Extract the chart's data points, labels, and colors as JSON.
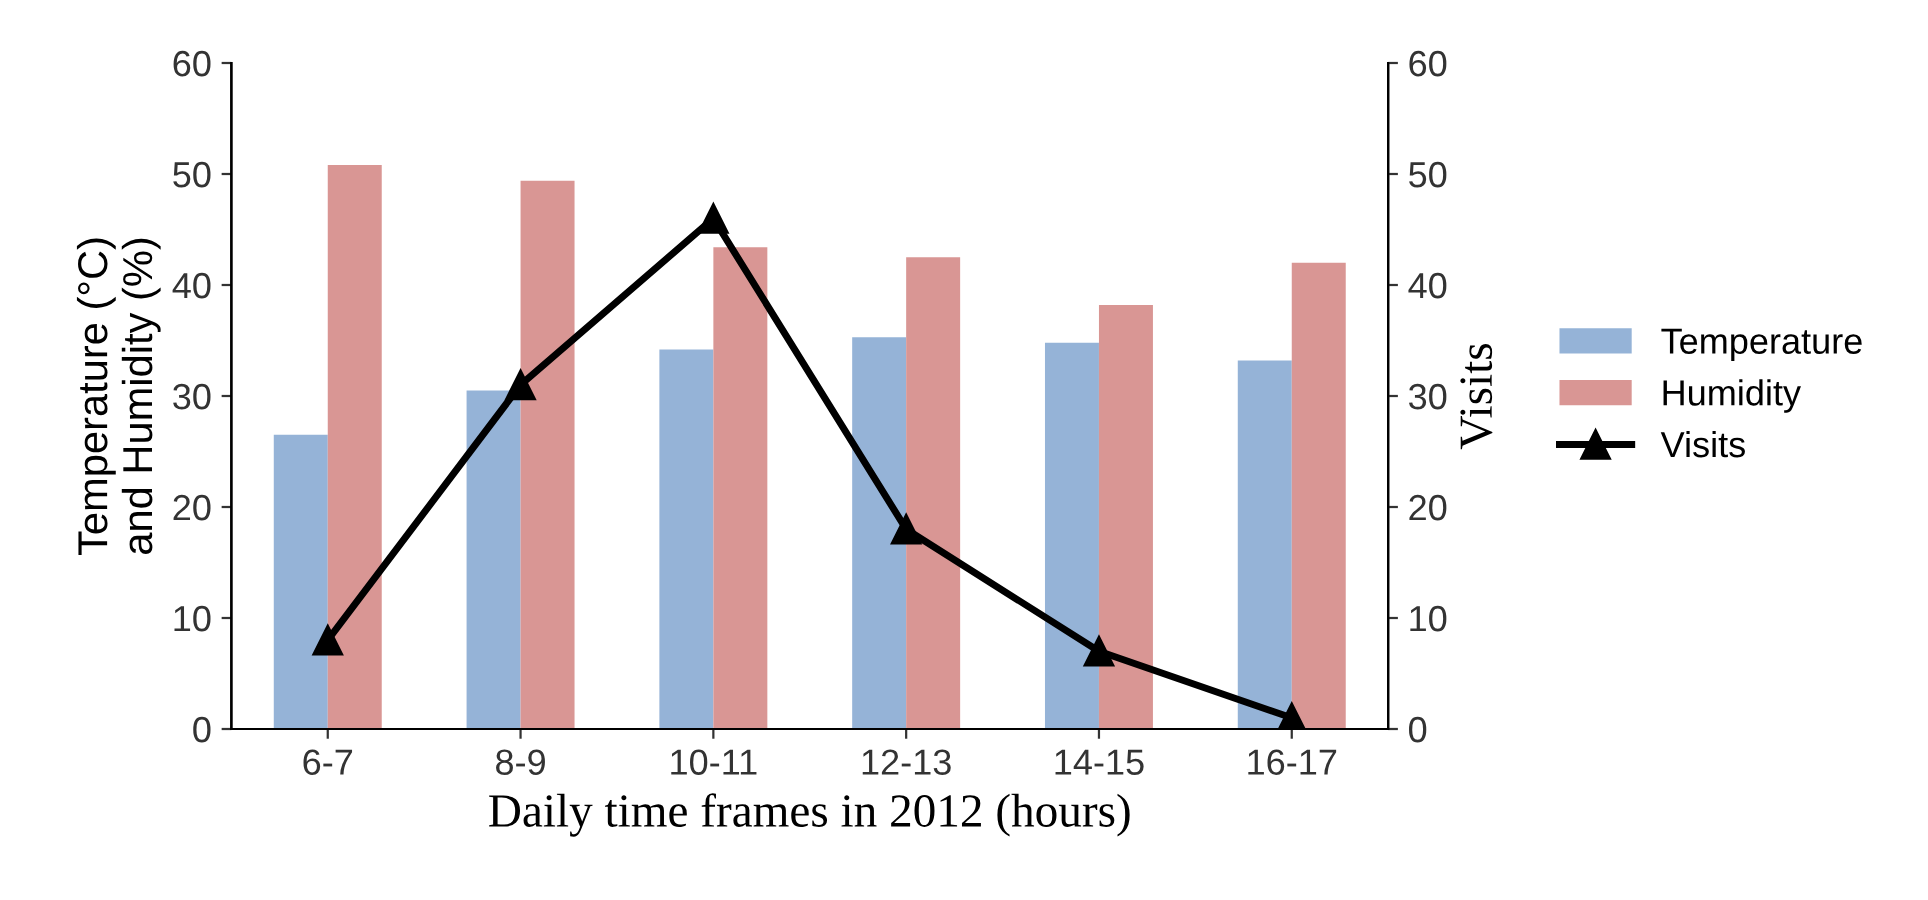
{
  "chart_data": {
    "type": "bar",
    "xlabel": "Daily time frames in 2012 (hours)",
    "ylabel": "Temperature (°C)\nand Humidity (%)",
    "y2label": "Visits",
    "categories": [
      "6-7",
      "8-9",
      "10-11",
      "12-13",
      "14-15",
      "16-17"
    ],
    "series": [
      {
        "name": "Temperature",
        "color": "#95b3d7",
        "values": [
          26.5,
          30.5,
          34.2,
          35.3,
          34.8,
          33.2
        ]
      },
      {
        "name": "Humidity",
        "color": "#d99694",
        "values": [
          50.8,
          49.4,
          43.4,
          42.5,
          38.2,
          42.0
        ]
      },
      {
        "name": "Visits",
        "type": "line",
        "axis": "y2",
        "color": "#000000",
        "marker": "triangle",
        "line_style": "solid",
        "values": [
          8,
          31,
          46,
          18,
          7,
          1
        ]
      }
    ],
    "ylim": [
      0,
      60
    ],
    "yticks": [
      0,
      10,
      20,
      30,
      40,
      50,
      60
    ],
    "y2lim": [
      0,
      60
    ],
    "y2ticks": [
      0,
      10,
      20,
      30,
      40,
      50,
      60
    ],
    "grid": false,
    "legend": "right"
  }
}
